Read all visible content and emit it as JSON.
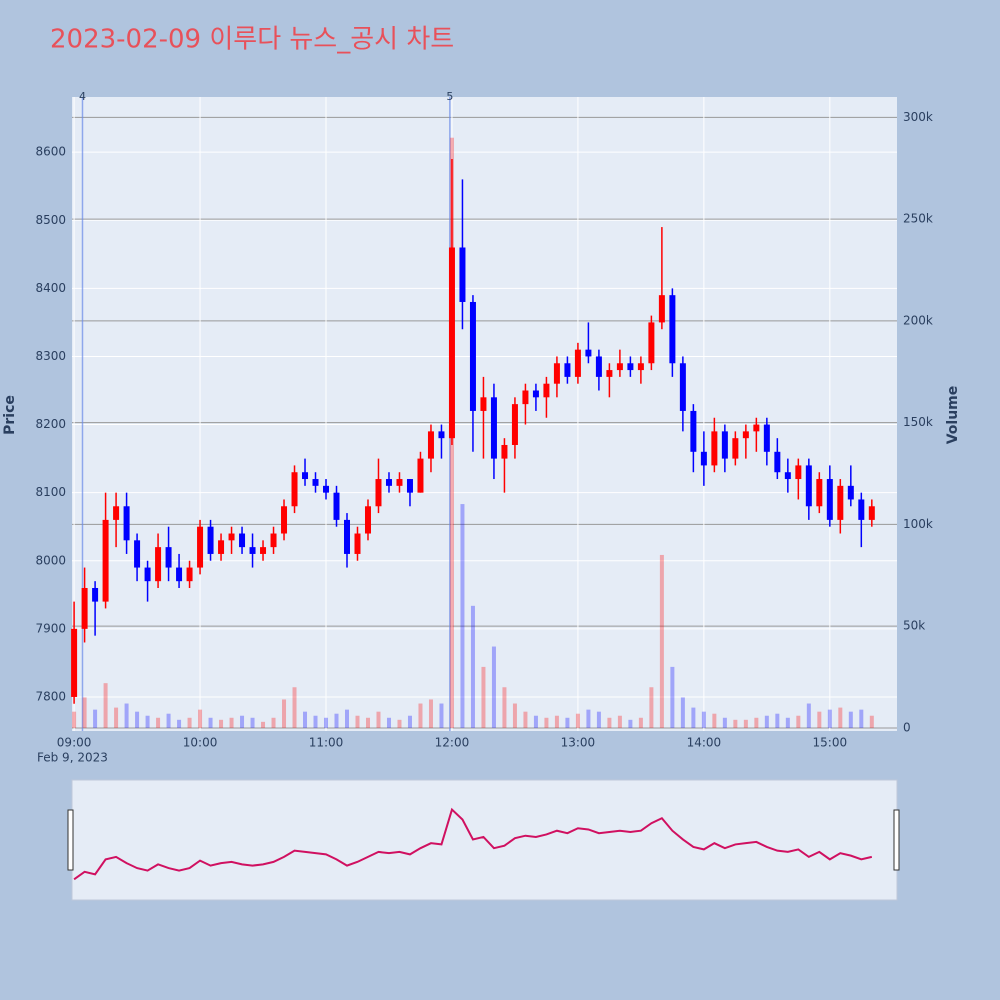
{
  "chart_data": {
    "type": "candlestick",
    "title": "2023-02-09 이루다 뉴스_공시 차트",
    "yaxis_label": "Price",
    "y2axis_label": "Volume",
    "x_date_label": "Feb 9, 2023",
    "up_color": "#ff0000",
    "down_color": "#0000ff",
    "xlim": [
      "08:59",
      "15:32"
    ],
    "xticks": [
      "09:00",
      "10:00",
      "11:00",
      "12:00",
      "13:00",
      "14:00",
      "15:00"
    ],
    "ylim": [
      7750,
      8681
    ],
    "yticks": [
      7800,
      7900,
      8000,
      8100,
      8200,
      8300,
      8400,
      8500,
      8600
    ],
    "y2lim": [
      -1500,
      310000
    ],
    "y2ticks": [
      0,
      {
        "value": 50000,
        "label": "50k"
      },
      {
        "value": 100000,
        "label": "100k"
      },
      {
        "value": 150000,
        "label": "150k"
      },
      {
        "value": 200000,
        "label": "200k"
      },
      {
        "value": 250000,
        "label": "250k"
      },
      {
        "value": 300000,
        "label": "300k"
      }
    ],
    "annotations": [
      {
        "x": "09:04",
        "text": "4"
      },
      {
        "x": "11:59",
        "text": "5"
      }
    ],
    "x": [
      "09:00",
      "09:05",
      "09:10",
      "09:15",
      "09:20",
      "09:25",
      "09:30",
      "09:35",
      "09:40",
      "09:45",
      "09:50",
      "09:55",
      "10:00",
      "10:05",
      "10:10",
      "10:15",
      "10:20",
      "10:25",
      "10:30",
      "10:35",
      "10:40",
      "10:45",
      "10:50",
      "10:55",
      "11:00",
      "11:05",
      "11:10",
      "11:15",
      "11:20",
      "11:25",
      "11:30",
      "11:35",
      "11:40",
      "11:45",
      "11:50",
      "11:55",
      "12:00",
      "12:05",
      "12:10",
      "12:15",
      "12:20",
      "12:25",
      "12:30",
      "12:35",
      "12:40",
      "12:45",
      "12:50",
      "12:55",
      "13:00",
      "13:05",
      "13:10",
      "13:15",
      "13:20",
      "13:25",
      "13:30",
      "13:35",
      "13:40",
      "13:45",
      "13:50",
      "13:55",
      "14:00",
      "14:05",
      "14:10",
      "14:15",
      "14:20",
      "14:25",
      "14:30",
      "14:35",
      "14:40",
      "14:45",
      "14:50",
      "14:55",
      "15:00",
      "15:05",
      "15:10",
      "15:15",
      "15:20"
    ],
    "open": [
      7800,
      7900,
      7960,
      7940,
      8060,
      8080,
      8030,
      7990,
      7970,
      8020,
      7990,
      7970,
      7990,
      8050,
      8010,
      8030,
      8040,
      8020,
      8010,
      8020,
      8040,
      8080,
      8130,
      8120,
      8110,
      8100,
      8060,
      8010,
      8040,
      8080,
      8120,
      8110,
      8120,
      8100,
      8150,
      8190,
      8180,
      8460,
      8380,
      8220,
      8240,
      8150,
      8170,
      8230,
      8250,
      8240,
      8260,
      8290,
      8270,
      8310,
      8300,
      8270,
      8280,
      8290,
      8280,
      8290,
      8350,
      8390,
      8290,
      8220,
      8160,
      8140,
      8190,
      8150,
      8180,
      8190,
      8200,
      8160,
      8130,
      8120,
      8140,
      8080,
      8120,
      8060,
      8110,
      8090,
      8060
    ],
    "high": [
      7940,
      7990,
      7970,
      8100,
      8100,
      8100,
      8040,
      8000,
      8040,
      8050,
      8010,
      8000,
      8060,
      8060,
      8040,
      8050,
      8050,
      8040,
      8030,
      8050,
      8090,
      8140,
      8150,
      8130,
      8120,
      8110,
      8070,
      8050,
      8090,
      8150,
      8130,
      8130,
      8120,
      8160,
      8200,
      8200,
      8590,
      8560,
      8390,
      8270,
      8260,
      8180,
      8240,
      8260,
      8260,
      8270,
      8300,
      8300,
      8320,
      8350,
      8310,
      8290,
      8310,
      8300,
      8300,
      8360,
      8490,
      8400,
      8300,
      8230,
      8190,
      8210,
      8200,
      8190,
      8200,
      8210,
      8210,
      8180,
      8150,
      8150,
      8150,
      8130,
      8140,
      8120,
      8140,
      8100,
      8090
    ],
    "low": [
      7790,
      7880,
      7890,
      7930,
      8020,
      8010,
      7970,
      7940,
      7960,
      7970,
      7960,
      7960,
      7980,
      8000,
      8000,
      8010,
      8010,
      7990,
      8000,
      8010,
      8030,
      8070,
      8110,
      8100,
      8090,
      8050,
      7990,
      8000,
      8030,
      8070,
      8100,
      8100,
      8080,
      8100,
      8130,
      8150,
      8170,
      8340,
      8160,
      8150,
      8120,
      8100,
      8150,
      8200,
      8220,
      8210,
      8240,
      8260,
      8260,
      8290,
      8250,
      8240,
      8270,
      8270,
      8260,
      8280,
      8340,
      8270,
      8190,
      8130,
      8110,
      8130,
      8130,
      8140,
      8150,
      8160,
      8140,
      8120,
      8100,
      8090,
      8060,
      8070,
      8050,
      8040,
      8080,
      8020,
      8050
    ],
    "close": [
      7900,
      7960,
      7940,
      8060,
      8080,
      8030,
      7990,
      7970,
      8020,
      7990,
      7970,
      7990,
      8050,
      8010,
      8030,
      8040,
      8020,
      8010,
      8020,
      8040,
      8080,
      8130,
      8120,
      8110,
      8100,
      8060,
      8010,
      8040,
      8080,
      8120,
      8110,
      8120,
      8100,
      8150,
      8190,
      8180,
      8460,
      8380,
      8220,
      8240,
      8150,
      8170,
      8230,
      8250,
      8240,
      8260,
      8290,
      8270,
      8310,
      8300,
      8270,
      8280,
      8290,
      8280,
      8290,
      8350,
      8390,
      8290,
      8220,
      8160,
      8140,
      8190,
      8150,
      8180,
      8190,
      8200,
      8160,
      8130,
      8120,
      8140,
      8080,
      8120,
      8060,
      8110,
      8090,
      8060,
      8080
    ],
    "volume": [
      8000,
      15000,
      9000,
      22000,
      10000,
      12000,
      8000,
      6000,
      5000,
      7000,
      4000,
      5000,
      9000,
      5000,
      4000,
      5000,
      6000,
      5000,
      3000,
      5000,
      14000,
      20000,
      8000,
      6000,
      5000,
      7000,
      9000,
      6000,
      5000,
      8000,
      5000,
      4000,
      6000,
      12000,
      14000,
      12000,
      290000,
      110000,
      60000,
      30000,
      40000,
      20000,
      12000,
      8000,
      6000,
      5000,
      6000,
      5000,
      7000,
      9000,
      8000,
      5000,
      6000,
      4000,
      5000,
      20000,
      85000,
      30000,
      15000,
      10000,
      8000,
      7000,
      5000,
      4000,
      4000,
      5000,
      6000,
      7000,
      5000,
      6000,
      12000,
      8000,
      9000,
      10000,
      8000,
      9000,
      6000
    ]
  }
}
